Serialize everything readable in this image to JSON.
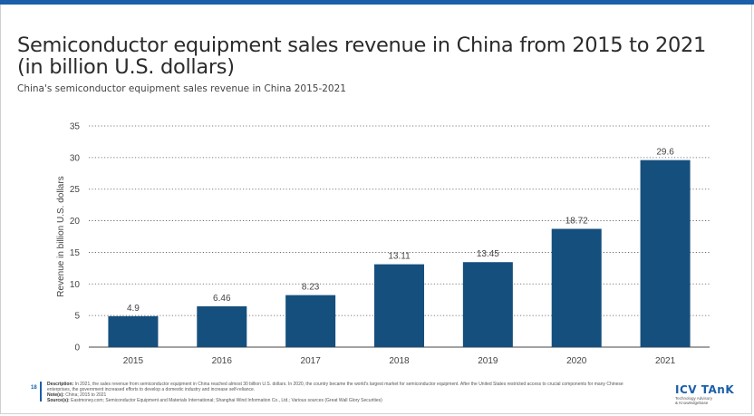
{
  "header": {
    "title": "Semiconductor equipment sales revenue in China from 2015 to 2021 (in billion U.S. dollars)",
    "subtitle": "China's semiconductor equipment sales revenue in China 2015-2021"
  },
  "colors": {
    "accent": "#1a5fa8",
    "bar": "#154f7d"
  },
  "chart_data": {
    "type": "bar",
    "categories": [
      "2015",
      "2016",
      "2017",
      "2018",
      "2019",
      "2020",
      "2021"
    ],
    "values": [
      4.9,
      6.46,
      8.23,
      13.11,
      13.45,
      18.72,
      29.6
    ],
    "data_labels": [
      "4.9",
      "6.46",
      "8.23",
      "13.11",
      "13.45",
      "18.72",
      "29.6"
    ],
    "ylabel": "Revenue in billion U.S. dollars",
    "xlabel": "",
    "ylim": [
      0,
      35
    ],
    "yticks": [
      0,
      5,
      10,
      15,
      20,
      25,
      30,
      35
    ],
    "grid": true,
    "grid_style": "dotted"
  },
  "footer": {
    "page_number": "18",
    "description_label": "Description:",
    "description": "In 2021, the sales revenue from semiconductor equipment in China reached almost 30 billion U.S. dollars. In 2020, the country became the world's largest market for semiconductor equipment. After the United States restricted access to crucial components for many Chinese enterprises, the government increased efforts to develop a domestic industry and increase self-reliance.",
    "notes_label": "Note(s):",
    "notes": "China; 2015 to 2021",
    "sources_label": "Source(s):",
    "sources": "Eastmoney.com; Semiconductor Equipment and Materials International; Shanghai Wind Information Co., Ltd.; Various sources (Great Wall Glory Securities)"
  },
  "logo": {
    "name": "ICV TAnK",
    "tagline1": "Technology Advisory",
    "tagline2": "& Knowledgebase"
  }
}
